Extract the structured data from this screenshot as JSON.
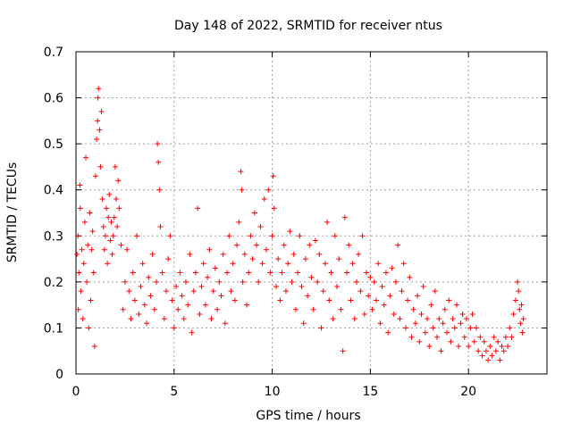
{
  "chart_data": {
    "type": "scatter",
    "title": "Day 148 of 2022, SRMTID for receiver ntus",
    "xlabel": "GPS time / hours",
    "ylabel": "SRMTID / TECUs",
    "xlim": [
      0,
      24
    ],
    "ylim": [
      0,
      0.7
    ],
    "xticks": [
      0,
      5,
      10,
      15,
      20
    ],
    "xtick_labels": [
      "0",
      "5",
      "10",
      "15",
      "20"
    ],
    "yticks": [
      0,
      0.1,
      0.2,
      0.3,
      0.4,
      0.5,
      0.6,
      0.7
    ],
    "ytick_labels": [
      "0",
      "0.1",
      "0.2",
      "0.3",
      "0.4",
      "0.5",
      "0.6",
      "0.7"
    ],
    "grid": true,
    "marker": "+",
    "color": "#ff0000",
    "series": [
      {
        "name": "ntus",
        "points": [
          [
            0.05,
            0.26
          ],
          [
            0.1,
            0.3
          ],
          [
            0.12,
            0.14
          ],
          [
            0.15,
            0.22
          ],
          [
            0.2,
            0.41
          ],
          [
            0.22,
            0.36
          ],
          [
            0.25,
            0.18
          ],
          [
            0.3,
            0.27
          ],
          [
            0.35,
            0.12
          ],
          [
            0.4,
            0.24
          ],
          [
            0.45,
            0.33
          ],
          [
            0.5,
            0.47
          ],
          [
            0.55,
            0.2
          ],
          [
            0.6,
            0.28
          ],
          [
            0.65,
            0.1
          ],
          [
            0.7,
            0.35
          ],
          [
            0.75,
            0.16
          ],
          [
            0.8,
            0.27
          ],
          [
            0.85,
            0.31
          ],
          [
            0.9,
            0.22
          ],
          [
            0.95,
            0.06
          ],
          [
            1.0,
            0.43
          ],
          [
            1.05,
            0.51
          ],
          [
            1.1,
            0.55
          ],
          [
            1.12,
            0.6
          ],
          [
            1.15,
            0.62
          ],
          [
            1.2,
            0.53
          ],
          [
            1.25,
            0.45
          ],
          [
            1.3,
            0.57
          ],
          [
            1.35,
            0.38
          ],
          [
            1.4,
            0.32
          ],
          [
            1.45,
            0.27
          ],
          [
            1.5,
            0.3
          ],
          [
            1.55,
            0.36
          ],
          [
            1.6,
            0.24
          ],
          [
            1.65,
            0.34
          ],
          [
            1.7,
            0.39
          ],
          [
            1.75,
            0.29
          ],
          [
            1.8,
            0.33
          ],
          [
            1.85,
            0.26
          ],
          [
            1.9,
            0.3
          ],
          [
            1.95,
            0.34
          ],
          [
            2.0,
            0.45
          ],
          [
            2.05,
            0.38
          ],
          [
            2.1,
            0.32
          ],
          [
            2.15,
            0.42
          ],
          [
            2.2,
            0.36
          ],
          [
            2.3,
            0.28
          ],
          [
            2.4,
            0.14
          ],
          [
            2.5,
            0.2
          ],
          [
            2.6,
            0.27
          ],
          [
            2.7,
            0.18
          ],
          [
            2.8,
            0.12
          ],
          [
            2.9,
            0.22
          ],
          [
            3.0,
            0.16
          ],
          [
            3.1,
            0.3
          ],
          [
            3.2,
            0.13
          ],
          [
            3.3,
            0.19
          ],
          [
            3.4,
            0.24
          ],
          [
            3.5,
            0.15
          ],
          [
            3.6,
            0.11
          ],
          [
            3.7,
            0.21
          ],
          [
            3.8,
            0.17
          ],
          [
            3.9,
            0.26
          ],
          [
            4.0,
            0.14
          ],
          [
            4.1,
            0.2
          ],
          [
            4.15,
            0.5
          ],
          [
            4.2,
            0.46
          ],
          [
            4.25,
            0.4
          ],
          [
            4.3,
            0.32
          ],
          [
            4.4,
            0.22
          ],
          [
            4.5,
            0.12
          ],
          [
            4.6,
            0.18
          ],
          [
            4.7,
            0.25
          ],
          [
            4.8,
            0.3
          ],
          [
            4.9,
            0.16
          ],
          [
            5.0,
            0.1
          ],
          [
            5.1,
            0.19
          ],
          [
            5.2,
            0.14
          ],
          [
            5.3,
            0.22
          ],
          [
            5.4,
            0.17
          ],
          [
            5.5,
            0.12
          ],
          [
            5.6,
            0.2
          ],
          [
            5.7,
            0.15
          ],
          [
            5.8,
            0.26
          ],
          [
            5.9,
            0.09
          ],
          [
            6.0,
            0.18
          ],
          [
            6.1,
            0.22
          ],
          [
            6.2,
            0.36
          ],
          [
            6.3,
            0.13
          ],
          [
            6.4,
            0.19
          ],
          [
            6.5,
            0.24
          ],
          [
            6.6,
            0.15
          ],
          [
            6.7,
            0.21
          ],
          [
            6.8,
            0.27
          ],
          [
            6.9,
            0.12
          ],
          [
            7.0,
            0.18
          ],
          [
            7.1,
            0.23
          ],
          [
            7.2,
            0.14
          ],
          [
            7.3,
            0.2
          ],
          [
            7.4,
            0.17
          ],
          [
            7.5,
            0.26
          ],
          [
            7.6,
            0.11
          ],
          [
            7.7,
            0.22
          ],
          [
            7.8,
            0.3
          ],
          [
            7.9,
            0.18
          ],
          [
            8.0,
            0.24
          ],
          [
            8.1,
            0.16
          ],
          [
            8.2,
            0.28
          ],
          [
            8.3,
            0.33
          ],
          [
            8.4,
            0.44
          ],
          [
            8.45,
            0.4
          ],
          [
            8.5,
            0.2
          ],
          [
            8.6,
            0.26
          ],
          [
            8.7,
            0.15
          ],
          [
            8.8,
            0.22
          ],
          [
            8.9,
            0.3
          ],
          [
            9.0,
            0.25
          ],
          [
            9.1,
            0.35
          ],
          [
            9.2,
            0.28
          ],
          [
            9.3,
            0.2
          ],
          [
            9.4,
            0.32
          ],
          [
            9.5,
            0.24
          ],
          [
            9.6,
            0.38
          ],
          [
            9.7,
            0.27
          ],
          [
            9.8,
            0.4
          ],
          [
            9.9,
            0.22
          ],
          [
            10.0,
            0.3
          ],
          [
            10.05,
            0.43
          ],
          [
            10.1,
            0.36
          ],
          [
            10.2,
            0.19
          ],
          [
            10.3,
            0.25
          ],
          [
            10.4,
            0.16
          ],
          [
            10.5,
            0.22
          ],
          [
            10.6,
            0.28
          ],
          [
            10.7,
            0.18
          ],
          [
            10.8,
            0.24
          ],
          [
            10.9,
            0.31
          ],
          [
            11.0,
            0.2
          ],
          [
            11.1,
            0.26
          ],
          [
            11.2,
            0.14
          ],
          [
            11.3,
            0.22
          ],
          [
            11.4,
            0.3
          ],
          [
            11.5,
            0.19
          ],
          [
            11.6,
            0.11
          ],
          [
            11.7,
            0.25
          ],
          [
            11.8,
            0.17
          ],
          [
            11.9,
            0.28
          ],
          [
            12.0,
            0.21
          ],
          [
            12.1,
            0.14
          ],
          [
            12.2,
            0.29
          ],
          [
            12.3,
            0.2
          ],
          [
            12.4,
            0.26
          ],
          [
            12.5,
            0.1
          ],
          [
            12.6,
            0.18
          ],
          [
            12.7,
            0.24
          ],
          [
            12.8,
            0.33
          ],
          [
            12.9,
            0.16
          ],
          [
            13.0,
            0.22
          ],
          [
            13.1,
            0.12
          ],
          [
            13.2,
            0.3
          ],
          [
            13.3,
            0.19
          ],
          [
            13.4,
            0.25
          ],
          [
            13.5,
            0.14
          ],
          [
            13.6,
            0.05
          ],
          [
            13.7,
            0.34
          ],
          [
            13.8,
            0.22
          ],
          [
            13.9,
            0.28
          ],
          [
            14.0,
            0.16
          ],
          [
            14.1,
            0.24
          ],
          [
            14.2,
            0.12
          ],
          [
            14.3,
            0.2
          ],
          [
            14.4,
            0.26
          ],
          [
            14.5,
            0.18
          ],
          [
            14.6,
            0.3
          ],
          [
            14.7,
            0.13
          ],
          [
            14.8,
            0.22
          ],
          [
            14.9,
            0.17
          ],
          [
            15.0,
            0.21
          ],
          [
            15.1,
            0.14
          ],
          [
            15.2,
            0.2
          ],
          [
            15.3,
            0.16
          ],
          [
            15.4,
            0.24
          ],
          [
            15.5,
            0.11
          ],
          [
            15.6,
            0.19
          ],
          [
            15.7,
            0.15
          ],
          [
            15.8,
            0.22
          ],
          [
            15.9,
            0.09
          ],
          [
            16.0,
            0.17
          ],
          [
            16.1,
            0.23
          ],
          [
            16.2,
            0.13
          ],
          [
            16.3,
            0.2
          ],
          [
            16.4,
            0.28
          ],
          [
            16.5,
            0.12
          ],
          [
            16.6,
            0.18
          ],
          [
            16.7,
            0.24
          ],
          [
            16.8,
            0.1
          ],
          [
            16.9,
            0.16
          ],
          [
            17.0,
            0.21
          ],
          [
            17.1,
            0.08
          ],
          [
            17.2,
            0.14
          ],
          [
            17.3,
            0.11
          ],
          [
            17.4,
            0.17
          ],
          [
            17.5,
            0.07
          ],
          [
            17.6,
            0.13
          ],
          [
            17.7,
            0.19
          ],
          [
            17.8,
            0.09
          ],
          [
            17.9,
            0.12
          ],
          [
            18.0,
            0.06
          ],
          [
            18.1,
            0.15
          ],
          [
            18.2,
            0.1
          ],
          [
            18.3,
            0.18
          ],
          [
            18.4,
            0.08
          ],
          [
            18.5,
            0.12
          ],
          [
            18.6,
            0.05
          ],
          [
            18.7,
            0.11
          ],
          [
            18.8,
            0.14
          ],
          [
            18.9,
            0.09
          ],
          [
            19.0,
            0.16
          ],
          [
            19.1,
            0.07
          ],
          [
            19.2,
            0.12
          ],
          [
            19.3,
            0.1
          ],
          [
            19.4,
            0.15
          ],
          [
            19.5,
            0.06
          ],
          [
            19.6,
            0.11
          ],
          [
            19.7,
            0.13
          ],
          [
            19.8,
            0.08
          ],
          [
            19.9,
            0.12
          ],
          [
            20.0,
            0.06
          ],
          [
            20.1,
            0.1
          ],
          [
            20.2,
            0.13
          ],
          [
            20.3,
            0.07
          ],
          [
            20.4,
            0.1
          ],
          [
            20.5,
            0.05
          ],
          [
            20.6,
            0.08
          ],
          [
            20.7,
            0.04
          ],
          [
            20.8,
            0.07
          ],
          [
            20.9,
            0.05
          ],
          [
            21.0,
            0.03
          ],
          [
            21.1,
            0.06
          ],
          [
            21.2,
            0.04
          ],
          [
            21.3,
            0.08
          ],
          [
            21.4,
            0.05
          ],
          [
            21.5,
            0.07
          ],
          [
            21.6,
            0.03
          ],
          [
            21.7,
            0.06
          ],
          [
            21.8,
            0.05
          ],
          [
            21.9,
            0.08
          ],
          [
            22.0,
            0.06
          ],
          [
            22.1,
            0.1
          ],
          [
            22.2,
            0.08
          ],
          [
            22.3,
            0.13
          ],
          [
            22.4,
            0.16
          ],
          [
            22.5,
            0.2
          ],
          [
            22.55,
            0.18
          ],
          [
            22.6,
            0.14
          ],
          [
            22.65,
            0.11
          ],
          [
            22.7,
            0.15
          ],
          [
            22.75,
            0.09
          ],
          [
            22.8,
            0.12
          ]
        ]
      }
    ]
  }
}
